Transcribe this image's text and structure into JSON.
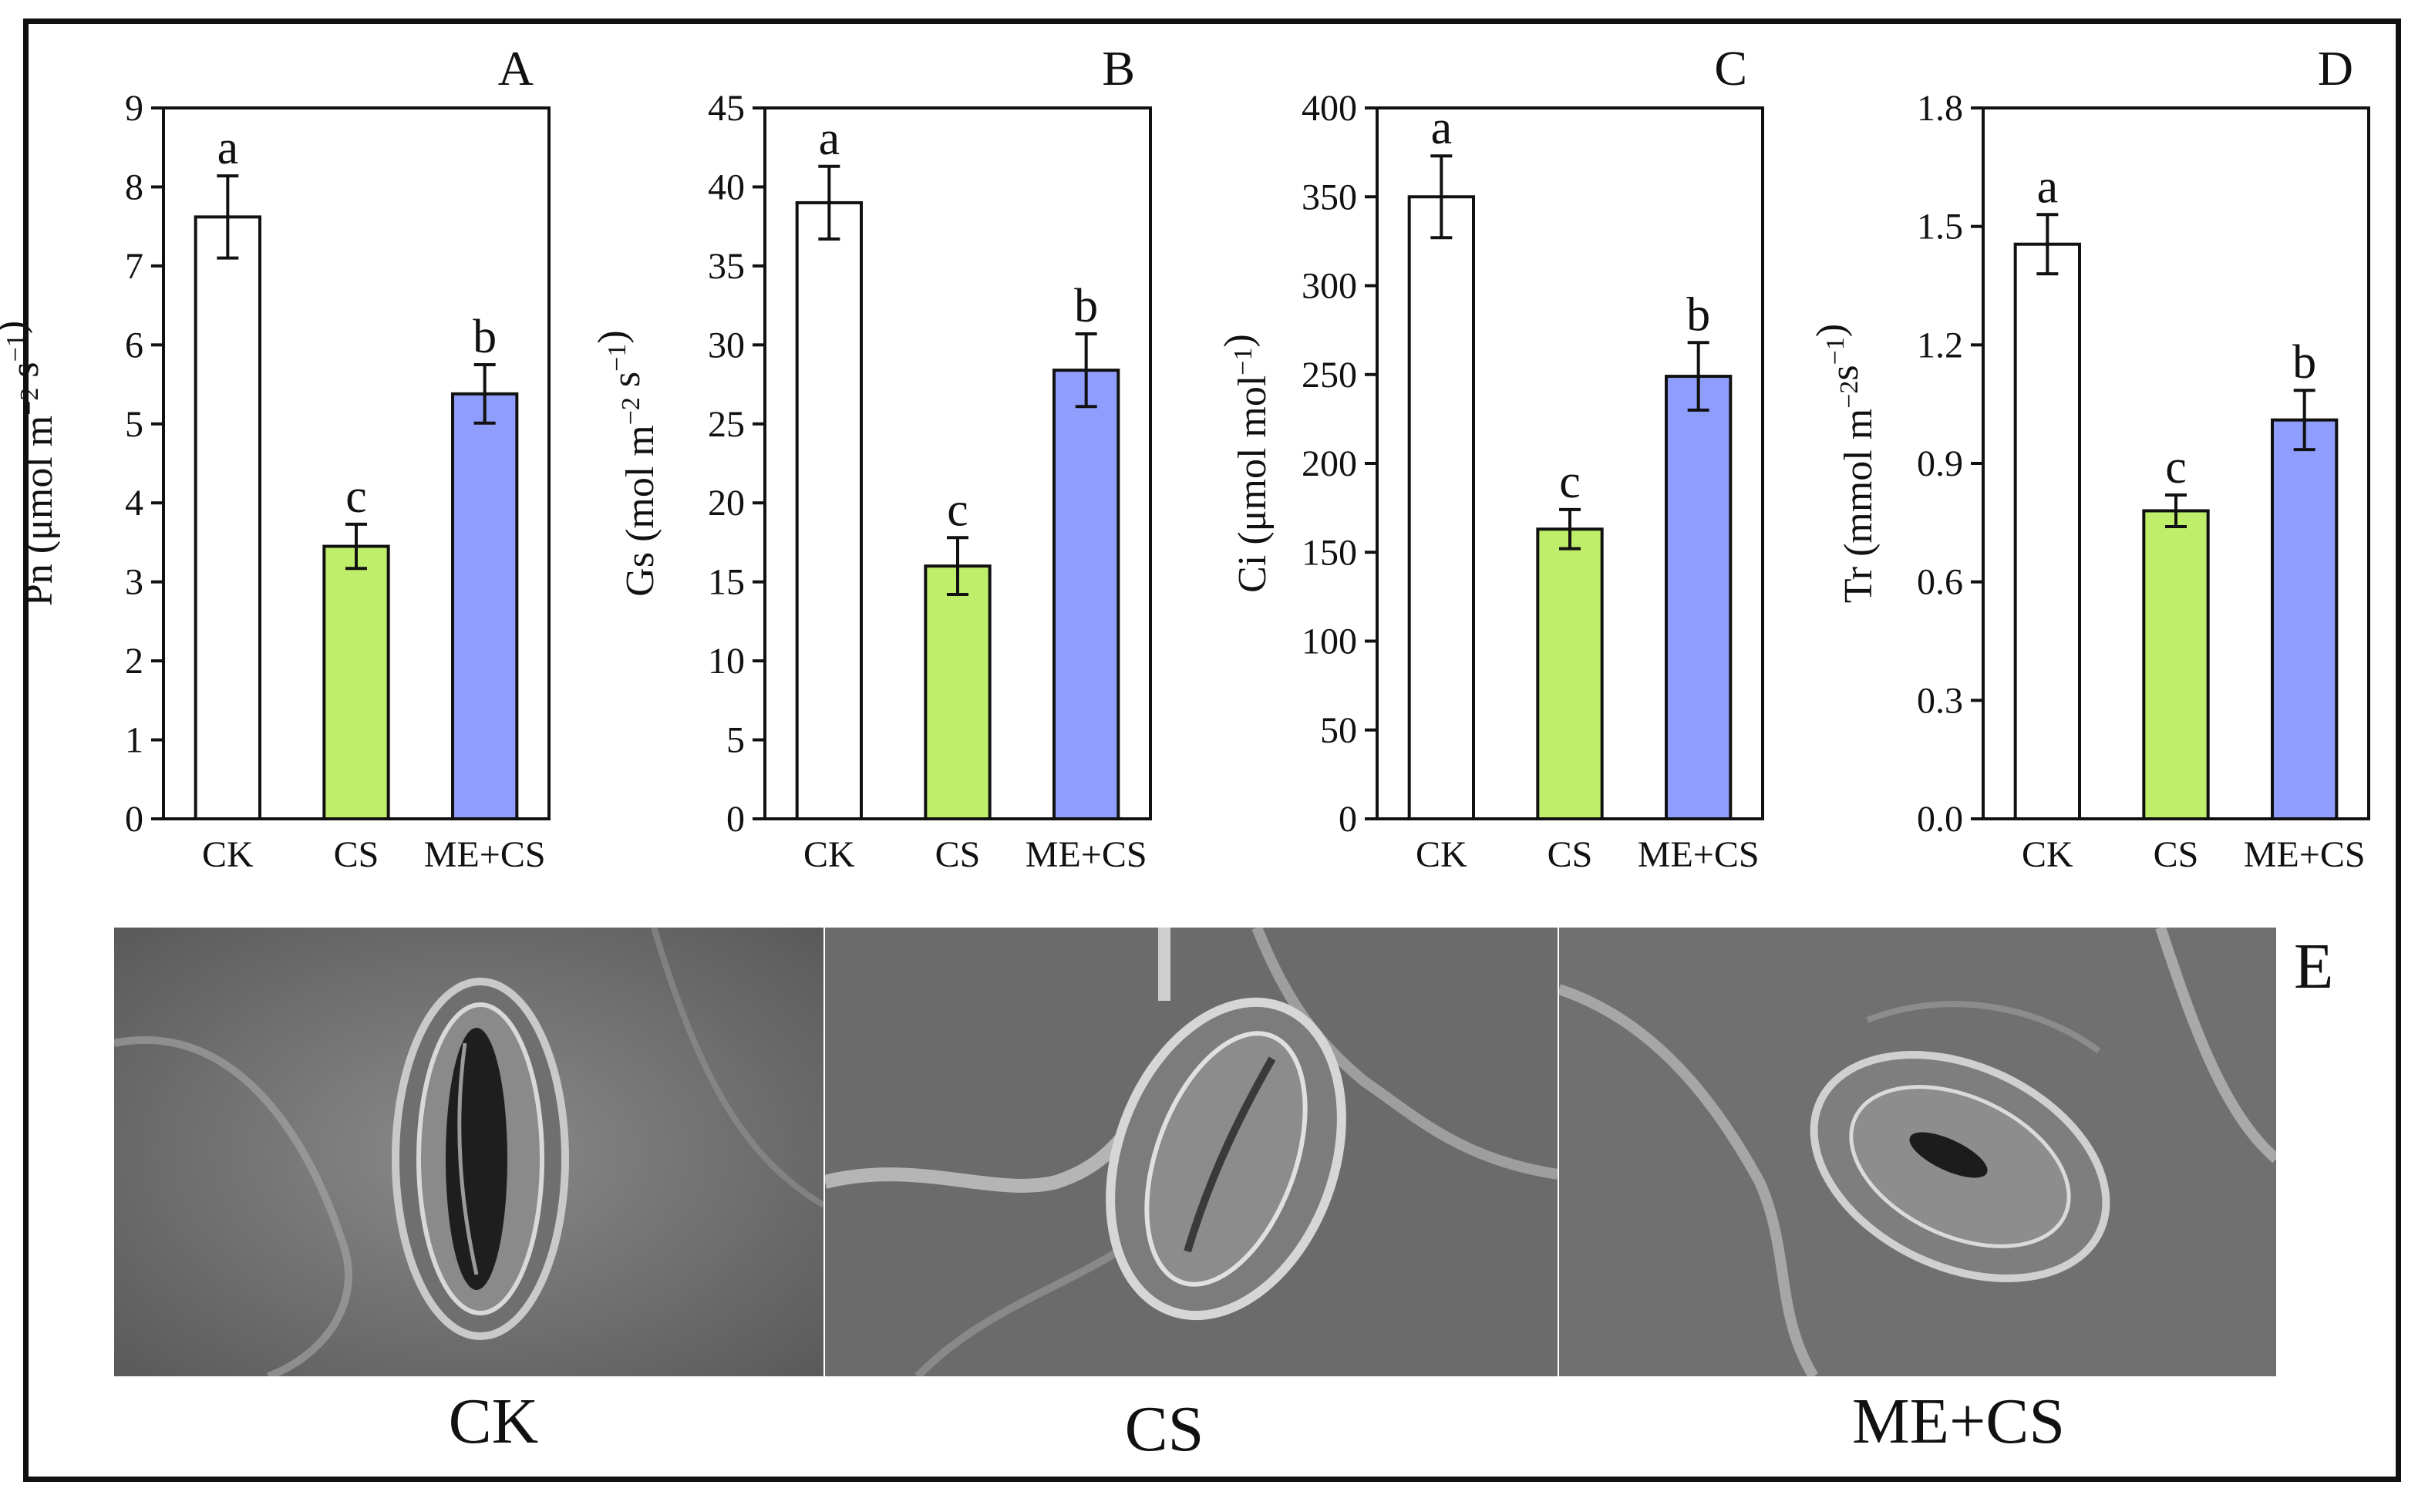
{
  "figure": {
    "panel_e_letter": "E",
    "colors": {
      "CK": "#ffffff",
      "CS": "#bfee6a",
      "ME+CS": "#8f9dfc",
      "axis": "#111111"
    },
    "sem_images": [
      {
        "label": "CK",
        "description_icon": "sem-stoma-open"
      },
      {
        "label": "CS",
        "description_icon": "sem-stoma-closed"
      },
      {
        "label": "ME+CS",
        "description_icon": "sem-stoma-partly-open"
      }
    ]
  },
  "chart_data": [
    {
      "type": "bar",
      "panel": "A",
      "categories": [
        "CK",
        "CS",
        "ME+CS"
      ],
      "values": [
        7.62,
        3.45,
        5.38
      ],
      "errors": [
        0.52,
        0.28,
        0.37
      ],
      "letters": [
        "a",
        "c",
        "b"
      ],
      "ylabel_main": "Pn (μmol m",
      "ylabel_sup1": "−2",
      "ylabel_mid": " s",
      "ylabel_sup2": "−1",
      "ylabel_end": ")",
      "ylim": [
        0,
        9
      ],
      "yticks": [
        "0",
        "1",
        "2",
        "3",
        "4",
        "5",
        "6",
        "7",
        "8",
        "9"
      ],
      "tick_values": [
        0,
        1,
        2,
        3,
        4,
        5,
        6,
        7,
        8,
        9
      ]
    },
    {
      "type": "bar",
      "panel": "B",
      "categories": [
        "CK",
        "CS",
        "ME+CS"
      ],
      "values": [
        39.0,
        16.0,
        28.4
      ],
      "errors": [
        2.3,
        1.8,
        2.3
      ],
      "letters": [
        "a",
        "c",
        "b"
      ],
      "ylabel_main": "Gs (mol m",
      "ylabel_sup1": "−2",
      "ylabel_mid": " s",
      "ylabel_sup2": "−1",
      "ylabel_end": ")",
      "ylim": [
        0,
        45
      ],
      "yticks": [
        "0",
        "5",
        "10",
        "15",
        "20",
        "25",
        "30",
        "35",
        "40",
        "45"
      ],
      "tick_values": [
        0,
        5,
        10,
        15,
        20,
        25,
        30,
        35,
        40,
        45
      ]
    },
    {
      "type": "bar",
      "panel": "C",
      "categories": [
        "CK",
        "CS",
        "ME+CS"
      ],
      "values": [
        350,
        163,
        249
      ],
      "errors": [
        23,
        11,
        19
      ],
      "letters": [
        "a",
        "c",
        "b"
      ],
      "ylabel_main": "Ci (μmol mol",
      "ylabel_sup1": "−1",
      "ylabel_mid": "",
      "ylabel_sup2": "",
      "ylabel_end": ")",
      "ylim": [
        0,
        400
      ],
      "yticks": [
        "0",
        "50",
        "100",
        "150",
        "200",
        "250",
        "300",
        "350",
        "400"
      ],
      "tick_values": [
        0,
        50,
        100,
        150,
        200,
        250,
        300,
        350,
        400
      ]
    },
    {
      "type": "bar",
      "panel": "D",
      "categories": [
        "CK",
        "CS",
        "ME+CS"
      ],
      "values": [
        1.455,
        0.78,
        1.01
      ],
      "errors": [
        0.075,
        0.04,
        0.075
      ],
      "letters": [
        "a",
        "c",
        "b"
      ],
      "ylabel_main": "Tr (mmol m",
      "ylabel_sup1": "−2",
      "ylabel_mid": "s",
      "ylabel_sup2": "−1",
      "ylabel_end": ")",
      "ylim": [
        0,
        1.8
      ],
      "yticks": [
        "0.0",
        "0.3",
        "0.6",
        "0.9",
        "1.2",
        "1.5",
        "1.8"
      ],
      "tick_values": [
        0,
        0.3,
        0.6,
        0.9,
        1.2,
        1.5,
        1.8
      ]
    }
  ]
}
